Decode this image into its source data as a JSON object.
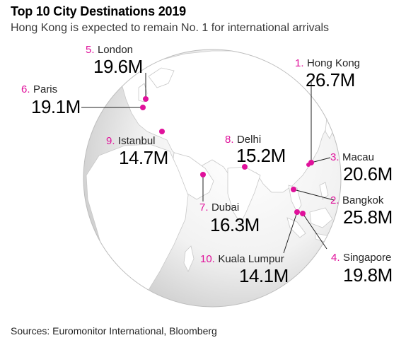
{
  "title": "Top 10 City Destinations 2019",
  "subtitle": "Hong Kong is expected to remain No. 1 for international arrivals",
  "source": "Sources: Euromonitor International, Bloomberg",
  "accent_color": "#e0119b",
  "cities": [
    {
      "rank": "1.",
      "name": "Hong Kong",
      "value": "26.7M"
    },
    {
      "rank": "2.",
      "name": "Bangkok",
      "value": "25.8M"
    },
    {
      "rank": "3.",
      "name": "Macau",
      "value": "20.6M"
    },
    {
      "rank": "4.",
      "name": "Singapore",
      "value": "19.8M"
    },
    {
      "rank": "5.",
      "name": "London",
      "value": "19.6M"
    },
    {
      "rank": "6.",
      "name": "Paris",
      "value": "19.1M"
    },
    {
      "rank": "7.",
      "name": "Dubai",
      "value": "16.3M"
    },
    {
      "rank": "8.",
      "name": "Delhi",
      "value": "15.2M"
    },
    {
      "rank": "9.",
      "name": "Istanbul",
      "value": "14.7M"
    },
    {
      "rank": "10.",
      "name": "Kuala Lumpur",
      "value": "14.1M"
    }
  ]
}
